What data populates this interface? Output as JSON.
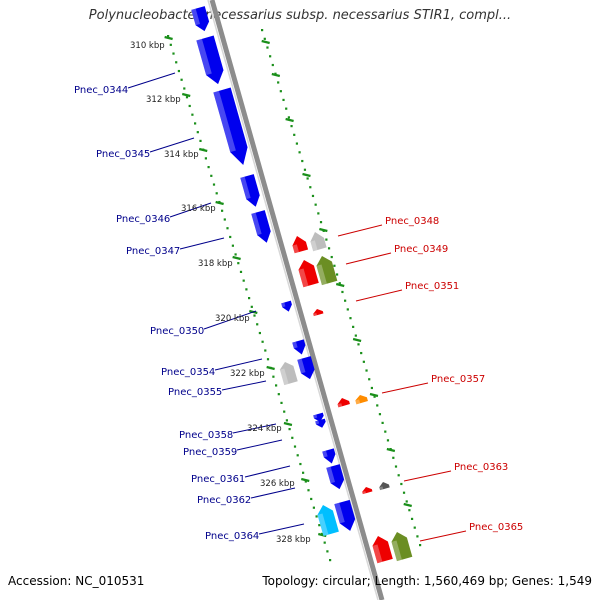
{
  "title": "Polynucleobacter necessarius subsp. necessarius STIR1, compl...",
  "footer": {
    "accession": "Accession: NC_010531",
    "summary": "Topology: circular; Length: 1,560,469 bp; Genes: 1,549"
  },
  "colors": {
    "backbone": "#9a9a9a",
    "tick": "#1a8f1a",
    "left_label": "#00008b",
    "right_label": "#cc0000",
    "blue": "#0000ee",
    "red": "#ee0000",
    "gray": "#bdbdbd",
    "olive": "#6b8e23",
    "orange": "#ff8c00",
    "darkgray": "#555555",
    "cyan": "#00bfff"
  },
  "scale_labels": [
    "310 kbp",
    "312 kbp",
    "314 kbp",
    "316 kbp",
    "318 kbp",
    "320 kbp",
    "322 kbp",
    "324 kbp",
    "326 kbp",
    "328 kbp"
  ],
  "left_labels": [
    "Pnec_0344",
    "Pnec_0345",
    "Pnec_0346",
    "Pnec_0347",
    "Pnec_0350",
    "Pnec_0354",
    "Pnec_0355",
    "Pnec_0358",
    "Pnec_0359",
    "Pnec_0361",
    "Pnec_0362",
    "Pnec_0364"
  ],
  "right_labels": [
    "Pnec_0348",
    "Pnec_0349",
    "Pnec_0351",
    "Pnec_0357",
    "Pnec_0363",
    "Pnec_0365"
  ]
}
